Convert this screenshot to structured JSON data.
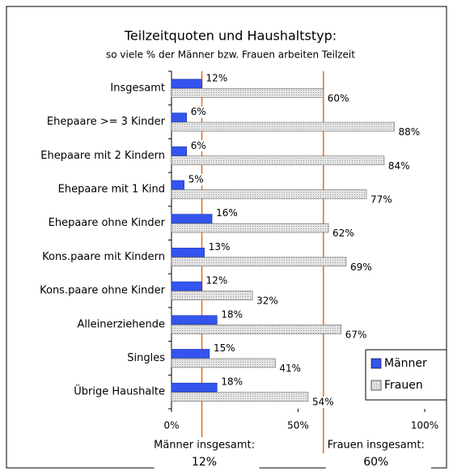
{
  "chart_data": {
    "type": "bar",
    "orientation": "horizontal",
    "title": "Teilzeitquoten und Haushaltstyp:",
    "subtitle": "so viele % der Männer bzw. Frauen arbeiten Teilzeit",
    "categories": [
      "Insgesamt",
      "Ehepaare >= 3 Kinder",
      "Ehepaare mit 2 Kindern",
      "Ehepaare mit 1 Kind",
      "Ehepaare ohne Kinder",
      "Kons.paare mit Kindern",
      "Kons.paare ohne Kinder",
      "Alleinerziehende",
      "Singles",
      "Übrige Haushalte"
    ],
    "series": [
      {
        "name": "Männer",
        "color": "#3355ee",
        "values": [
          12,
          6,
          6,
          5,
          16,
          13,
          12,
          18,
          15,
          18
        ],
        "value_labels": [
          "12%",
          "6%",
          "6%",
          "5%",
          "16%",
          "13%",
          "12%",
          "18%",
          "15%",
          "18%"
        ]
      },
      {
        "name": "Frauen",
        "color": "#d9d9d9",
        "values": [
          60,
          88,
          84,
          77,
          62,
          69,
          32,
          67,
          41,
          54
        ],
        "value_labels": [
          "60%",
          "88%",
          "84%",
          "77%",
          "62%",
          "69%",
          "32%",
          "67%",
          "41%",
          "54%"
        ]
      }
    ],
    "xlim": [
      0,
      100
    ],
    "xticks": [
      {
        "value": 0,
        "label": "0%"
      },
      {
        "value": 50,
        "label": "50%"
      },
      {
        "value": 100,
        "label": "100%"
      }
    ],
    "reference_lines": [
      {
        "label": "Männer insgesamt:",
        "value": 12,
        "value_label": "12%",
        "color": "#e07020"
      },
      {
        "label": "Frauen insgesamt:",
        "value": 60,
        "value_label": "60%",
        "color": "#e07020"
      }
    ],
    "legend": "lower right"
  }
}
